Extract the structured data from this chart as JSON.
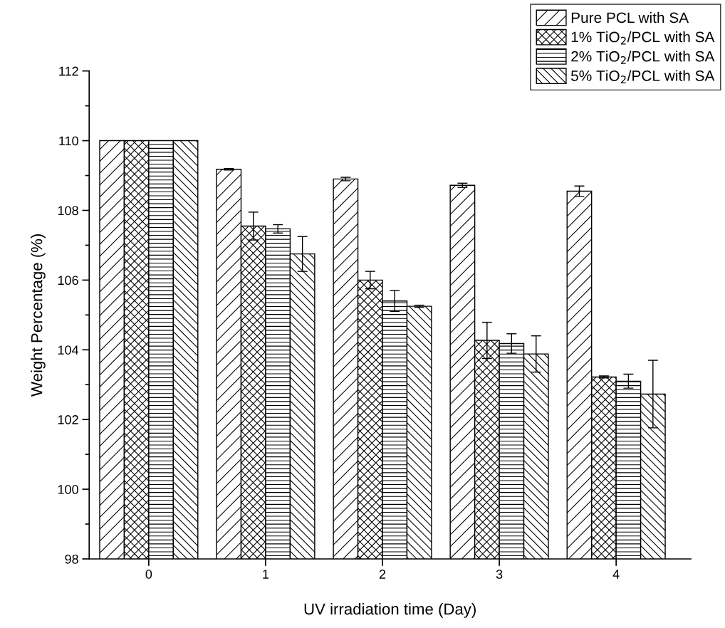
{
  "chart_data": {
    "type": "bar",
    "xlabel": "UV irradiation time (Day)",
    "ylabel": "Weight Percentage (%)",
    "categories": [
      "0",
      "1",
      "2",
      "3",
      "4"
    ],
    "series": [
      {
        "name": "Pure PCL with SA",
        "color": "#000000",
        "values": [
          110,
          109.18,
          108.9,
          108.72,
          108.55
        ],
        "errors": [
          null,
          0.02,
          0.05,
          0.06,
          0.15
        ]
      },
      {
        "name": "1% TiO$_{2}$/PCL with SA",
        "color": "#000000",
        "values": [
          110,
          107.55,
          106.0,
          104.27,
          103.22
        ],
        "errors": [
          null,
          0.4,
          0.25,
          0.52,
          0.03
        ]
      },
      {
        "name": "2% TiO$_{2}$/PCL with SA",
        "color": "#000000",
        "values": [
          110,
          107.47,
          105.4,
          104.18,
          103.1
        ],
        "errors": [
          null,
          0.12,
          0.3,
          0.28,
          0.2
        ]
      },
      {
        "name": "5% TiO$_{2}$/PCL with SA",
        "color": "#000000",
        "values": [
          110,
          106.75,
          105.25,
          103.88,
          102.73
        ],
        "errors": [
          null,
          0.5,
          0.03,
          0.52,
          0.97
        ]
      }
    ],
    "ylim": [
      98,
      112
    ],
    "yticks": [
      98,
      100,
      102,
      104,
      106,
      108,
      110,
      112
    ],
    "grid": false,
    "legend": "top right"
  }
}
